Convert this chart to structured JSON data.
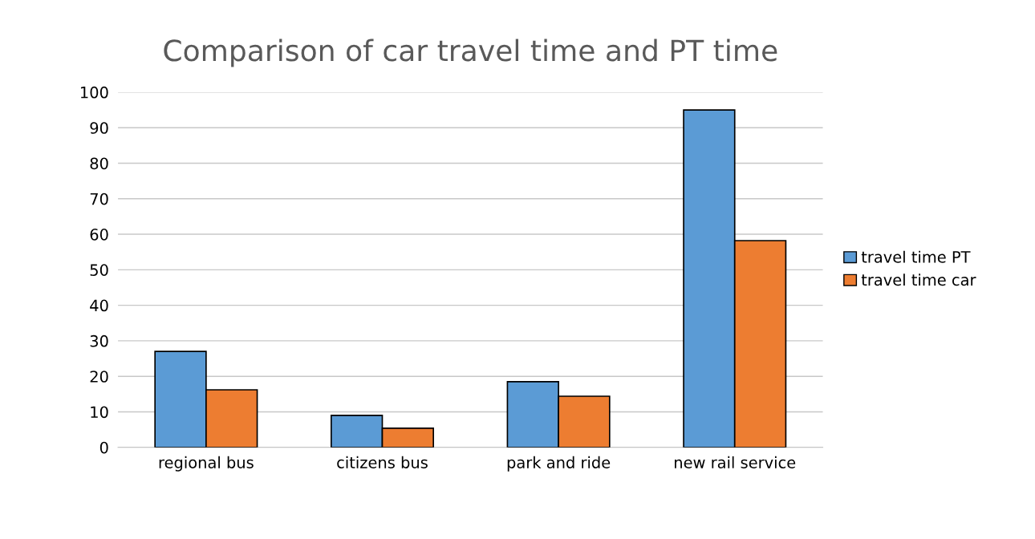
{
  "chart_data": {
    "type": "bar",
    "title": "Comparison of car travel time and PT time",
    "categories": [
      "regional bus",
      "citizens bus",
      "park and ride",
      "new rail service"
    ],
    "series": [
      {
        "name": "travel time PT",
        "color": "#5b9bd5",
        "values": [
          27,
          9,
          18.5,
          95
        ]
      },
      {
        "name": "travel time car",
        "color": "#ed7d31",
        "values": [
          16.2,
          5.4,
          14.4,
          58.2
        ]
      }
    ],
    "ylim": [
      0,
      100
    ],
    "yticks": [
      0,
      10,
      20,
      30,
      40,
      50,
      60,
      70,
      80,
      90,
      100
    ],
    "grid": "y",
    "legend": "right"
  }
}
